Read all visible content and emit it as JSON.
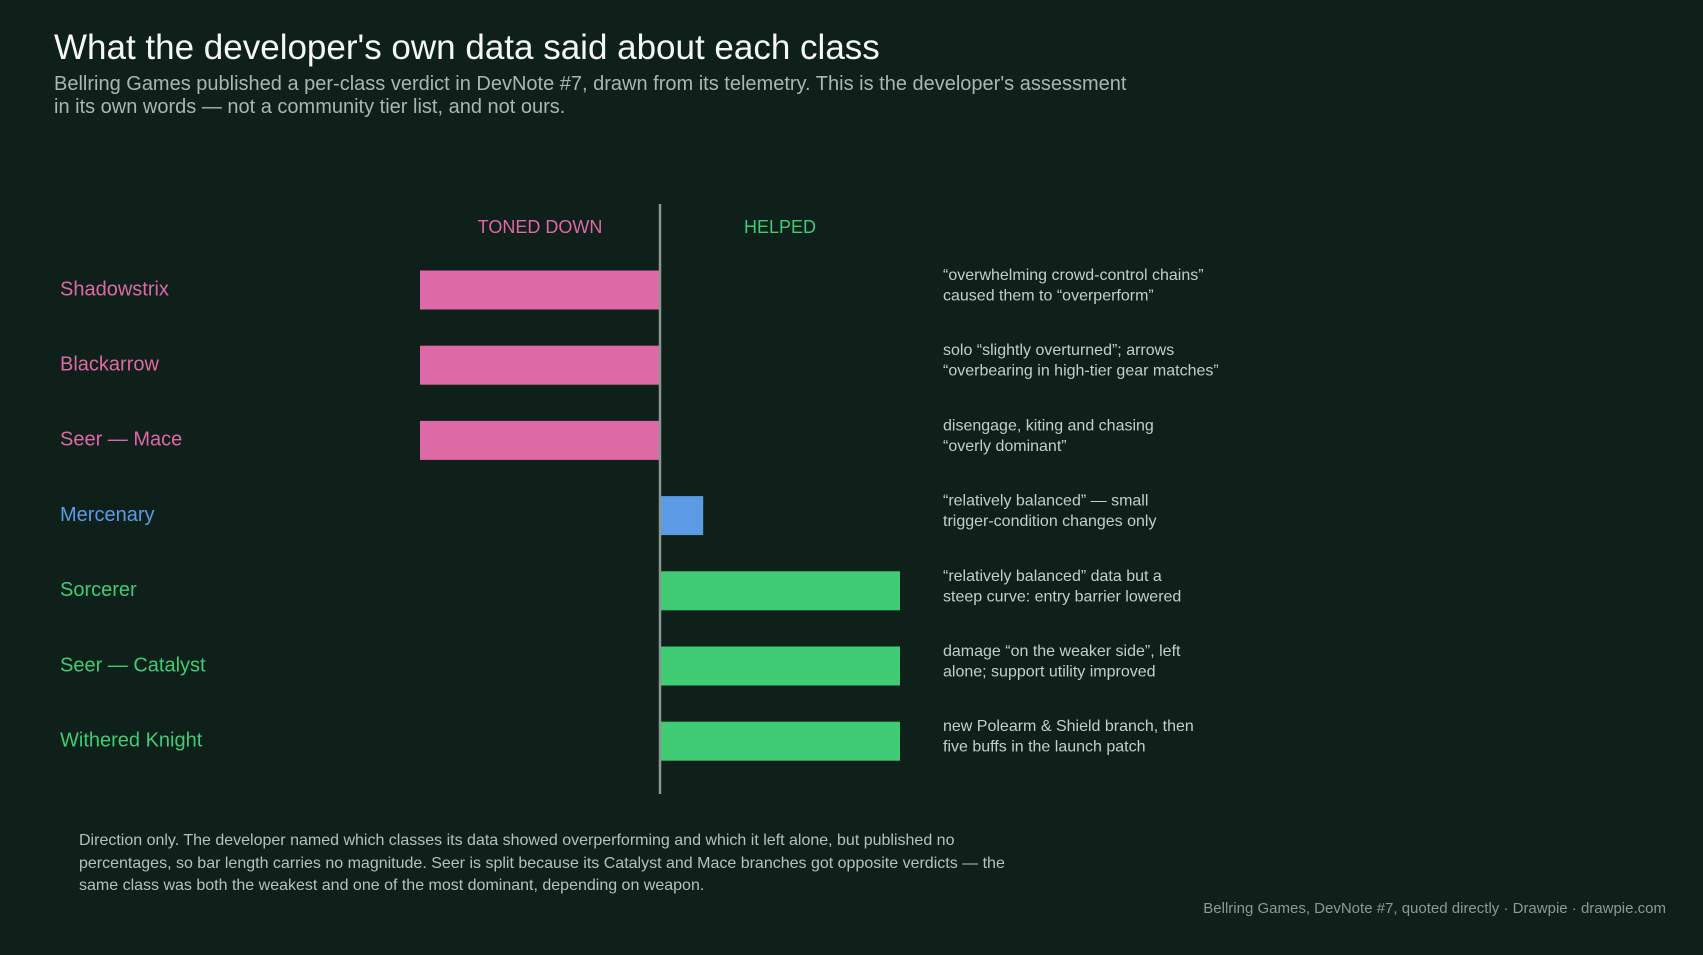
{
  "title": "What the developer's own data said about each class",
  "subtitle": "Bellring Games published a per-class verdict in DevNote #7, drawn from its telemetry. This is the developer's assessment in its own words — not a community tier list, and not ours.",
  "note": "Direction only. The developer named which classes its data showed overperforming and which it left alone, but published no percentages, so bar length carries no magnitude. Seer is split because its Catalyst and Mace branches got opposite verdicts — the same class was both the weakest and one of the most dominant, depending on weapon.",
  "footer": "Bellring Games, DevNote #7, quoted directly  ·  Drawpie · drawpie.com",
  "colors": {
    "toned_down": "#dd69a6",
    "neutral": "#5b9be6",
    "helped": "#40cc74",
    "axis": "#8a9690",
    "annotation": "#c3cfc8",
    "background": "#0f1f1a"
  },
  "chart_data": {
    "type": "bar",
    "orientation": "horizontal-diverging",
    "direction_labels": {
      "negative": "TONED DOWN",
      "positive": "HELPED"
    },
    "xlim": [
      -1,
      1
    ],
    "categories": [
      "Shadowstrix",
      "Blackarrow",
      "Seer — Mace",
      "Mercenary",
      "Sorcerer",
      "Seer — Catalyst",
      "Withered Knight"
    ],
    "values": [
      -1,
      -1,
      -1,
      0.18,
      1,
      1,
      1
    ],
    "verdict": [
      "toned_down",
      "toned_down",
      "toned_down",
      "neutral",
      "helped",
      "helped",
      "helped"
    ],
    "annotations": [
      [
        "“overwhelming crowd-control chains”",
        "caused them to “overperform”"
      ],
      [
        "solo “slightly overturned”; arrows",
        "“overbearing in high-tier gear matches”"
      ],
      [
        "disengage, kiting and chasing",
        "“overly dominant”"
      ],
      [
        "“relatively balanced” — small",
        "trigger-condition changes only"
      ],
      [
        "“relatively balanced” data but a",
        "steep curve: entry barrier lowered"
      ],
      [
        "damage “on the weaker side”, left",
        "alone; support utility improved"
      ],
      [
        "new Polearm & Shield branch, then",
        "five buffs in the launch patch"
      ]
    ]
  }
}
